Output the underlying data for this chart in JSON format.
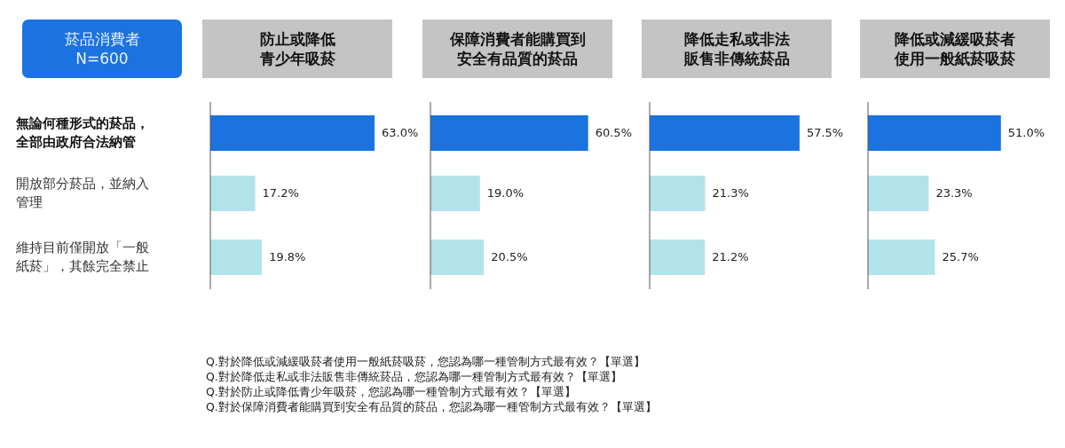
{
  "chart_data": [
    {
      "type": "bar",
      "orientation": "horizontal",
      "title": "防止或降低青少年吸菸",
      "subtitle": "菸品消費者 N=600",
      "categories": [
        "無論何種形式的菸品，全部由政府合法納管",
        "開放部分菸品，並納入管理",
        "維持目前僅開放「一般紙菸」，其餘完全禁止"
      ],
      "values": [
        63.0,
        17.2,
        19.8
      ],
      "colors": [
        "#1a73e0",
        "#b3e3ea",
        "#b3e3ea"
      ],
      "value_labels": [
        "63.0%",
        "17.2%",
        "19.8%"
      ],
      "tick_labels": "y",
      "annotations": [
        "Q.對於降低或減緩吸菸者使用一般紙菸吸菸，您認為哪一種管制方式最有效？【單選】",
        "Q.對於降低走私或非法販售非傳統菸品，您認為哪一種管制方式最有效？【單選】",
        "Q.對於防止或降低青少年吸菸，您認為哪一種管制方式最有效？【單選】",
        "Q.對於保障消費者能購買到安全有品質的菸品，您認為哪一種管制方式最有效？【單選】"
      ]
    },
    {
      "type": "bar",
      "orientation": "horizontal",
      "title": "保障消費者能購買到安全有品質的菸品",
      "categories": [
        null,
        null,
        null
      ],
      "values": [
        60.5,
        19.0,
        20.5
      ],
      "colors": [
        "#1a73e0",
        "#b3e3ea",
        "#b3e3ea"
      ],
      "value_labels": [
        "60.5%",
        "19.0%",
        "20.5%"
      ]
    },
    {
      "type": "bar",
      "orientation": "horizontal",
      "title": "降低走私或非法販售非傳統菸品",
      "categories": [
        null,
        null,
        null
      ],
      "values": [
        57.5,
        21.3,
        21.2
      ],
      "colors": [
        "#1a73e0",
        "#b3e3ea",
        "#b3e3ea"
      ],
      "value_labels": [
        "57.5%",
        "21.3%",
        "21.2%"
      ]
    },
    {
      "type": "bar",
      "orientation": "horizontal",
      "title": "降低或減緩吸菸者使用一般紙菸吸菸",
      "categories": [
        null,
        null,
        null
      ],
      "values": [
        51.0,
        23.3,
        25.7
      ],
      "colors": [
        "#1a73e0",
        "#b3e3ea",
        "#b3e3ea"
      ],
      "value_labels": [
        "51.0%",
        "23.3%",
        "25.7%"
      ]
    }
  ]
}
